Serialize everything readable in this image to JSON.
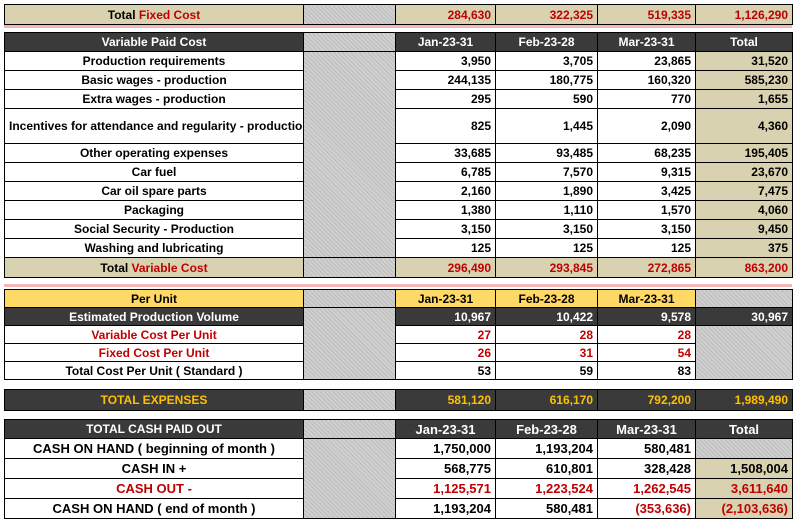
{
  "fixed_total": {
    "label_prefix": "Total ",
    "label_colored": "Fixed Cost",
    "values": [
      "284,630",
      "322,325",
      "519,335",
      "1,126,290"
    ]
  },
  "variable": {
    "header": {
      "label": "Variable Paid Cost",
      "cols": [
        "Jan-23-31",
        "Feb-23-28",
        "Mar-23-31",
        "Total"
      ]
    },
    "rows": [
      {
        "label": "Production requirements",
        "values": [
          "3,950",
          "3,705",
          "23,865",
          "31,520"
        ]
      },
      {
        "label": "Basic wages - production",
        "values": [
          "244,135",
          "180,775",
          "160,320",
          "585,230"
        ]
      },
      {
        "label": "Extra wages - production",
        "values": [
          "295",
          "590",
          "770",
          "1,655"
        ]
      },
      {
        "label": "Incentives for attendance and regularity - production",
        "values": [
          "825",
          "1,445",
          "2,090",
          "4,360"
        ]
      },
      {
        "label": "Other operating expenses",
        "values": [
          "33,685",
          "93,485",
          "68,235",
          "195,405"
        ]
      },
      {
        "label": "Car fuel",
        "values": [
          "6,785",
          "7,570",
          "9,315",
          "23,670"
        ]
      },
      {
        "label": "Car oil spare parts",
        "values": [
          "2,160",
          "1,890",
          "3,425",
          "7,475"
        ]
      },
      {
        "label": "Packaging",
        "values": [
          "1,380",
          "1,110",
          "1,570",
          "4,060"
        ]
      },
      {
        "label": "Social Security - Production",
        "values": [
          "3,150",
          "3,150",
          "3,150",
          "9,450"
        ]
      },
      {
        "label": "Washing and lubricating",
        "values": [
          "125",
          "125",
          "125",
          "375"
        ]
      }
    ],
    "total": {
      "label_prefix": "Total ",
      "label_colored": "Variable Cost",
      "values": [
        "296,490",
        "293,845",
        "272,865",
        "863,200"
      ]
    }
  },
  "per_unit": {
    "header": {
      "label": "Per Unit",
      "cols": [
        "Jan-23-31",
        "Feb-23-28",
        "Mar-23-31"
      ]
    },
    "volume": {
      "label": "Estimated Production Volume",
      "values": [
        "10,967",
        "10,422",
        "9,578",
        "30,967"
      ]
    },
    "variable": {
      "label": "Variable Cost Per Unit",
      "values": [
        "27",
        "28",
        "28"
      ]
    },
    "fixed": {
      "label": "Fixed Cost Per Unit",
      "values": [
        "26",
        "31",
        "54"
      ]
    },
    "total": {
      "label": "Total Cost Per Unit ( Standard )",
      "values": [
        "53",
        "59",
        "83"
      ]
    }
  },
  "total_expenses": {
    "label": "TOTAL EXPENSES",
    "values": [
      "581,120",
      "616,170",
      "792,200",
      "1,989,490"
    ]
  },
  "cash": {
    "header": {
      "label": "TOTAL CASH PAID OUT",
      "cols": [
        "Jan-23-31",
        "Feb-23-28",
        "Mar-23-31",
        "Total"
      ]
    },
    "rows": [
      {
        "label": "CASH ON HAND ( beginning of month )",
        "values": [
          "1,750,000",
          "1,193,204",
          "580,481",
          ""
        ]
      },
      {
        "label": "CASH IN +",
        "values": [
          "568,775",
          "610,801",
          "328,428",
          "1,508,004"
        ]
      },
      {
        "label": "CASH OUT -",
        "values": [
          "1,125,571",
          "1,223,524",
          "1,262,545",
          "3,611,640"
        ]
      },
      {
        "label": "CASH ON HAND ( end of month )",
        "values": [
          "1,193,204",
          "580,481",
          "(353,636)",
          "(2,103,636)"
        ]
      }
    ]
  }
}
